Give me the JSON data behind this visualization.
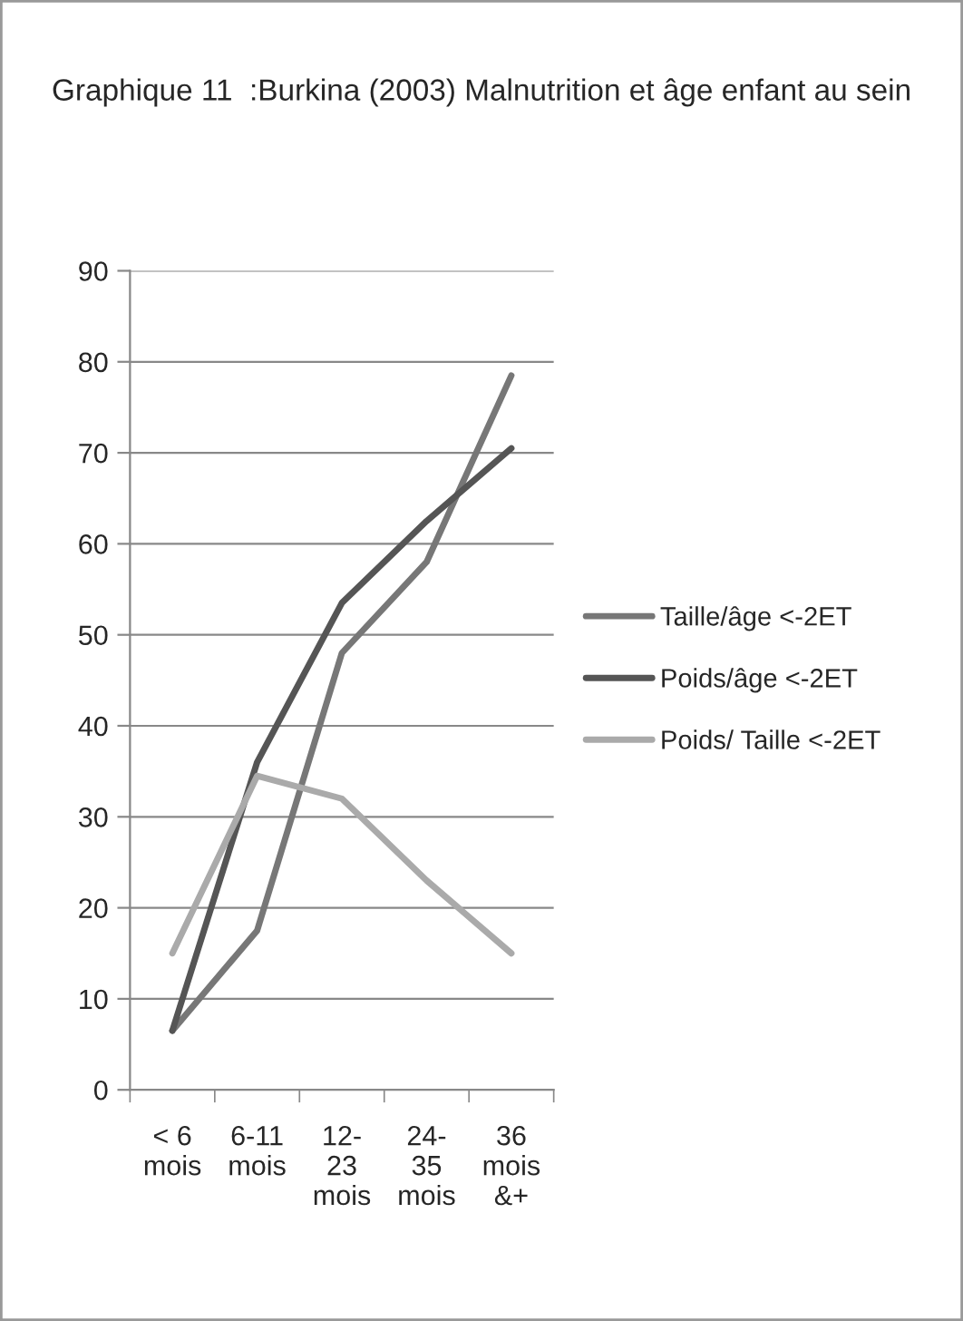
{
  "chart_data": {
    "type": "line",
    "title": "Graphique 11  :Burkina (2003) Malnutrition et âge enfant au sein",
    "categories": [
      "< 6\nmois",
      "6-11\nmois",
      "12-\n23\nmois",
      "24-\n35\nmois",
      "36\nmois\n&+"
    ],
    "series": [
      {
        "name": "Taille/âge <-2ET",
        "color": "#777777",
        "values": [
          6.5,
          17.5,
          48,
          58,
          78.5
        ]
      },
      {
        "name": "Poids/âge <-2ET",
        "color": "#555555",
        "values": [
          6.5,
          36,
          53.5,
          62.5,
          70.5
        ]
      },
      {
        "name": "Poids/ Taille <-2ET",
        "color": "#aaaaaa",
        "values": [
          15,
          34.5,
          32,
          23,
          15
        ]
      }
    ],
    "ylim": [
      0,
      90
    ],
    "yticks": [
      0,
      10,
      20,
      30,
      40,
      50,
      60,
      70,
      80,
      90
    ],
    "grid": "y",
    "legend": "right",
    "marker": "none",
    "line_style": "solid"
  }
}
